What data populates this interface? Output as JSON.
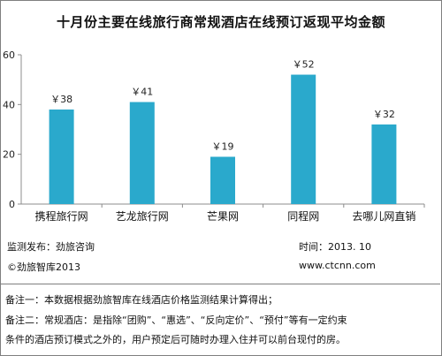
{
  "chart_data": {
    "type": "bar",
    "title": "十月份主要在线旅行商常规酒店在线预订返现平均金额",
    "categories": [
      "携程旅行网",
      "艺龙旅行网",
      "芒果网",
      "同程网",
      "去哪儿网直销"
    ],
    "values": [
      38,
      41,
      19,
      52,
      32
    ],
    "data_labels": [
      "￥38",
      "￥41",
      "￥19",
      "￥52",
      "￥32"
    ],
    "ylim": [
      0,
      60
    ],
    "yticks": [
      0,
      20,
      40,
      60
    ],
    "grid": false,
    "bar_color": "#2aa9cc"
  },
  "info": {
    "publisher": "监测发布：劲旅咨询",
    "time": "时间：2013. 10",
    "copyright": "©劲旅智库2013",
    "website": "www.ctcnn.com"
  },
  "notes": {
    "line1": "备注一：本数据根据劲旅智库在线酒店价格监测结果计算得出；",
    "line2": "备注二：常规酒店：是指除“团购”、“惠选”、“反向定价”、“预付”等有一定约束",
    "line3": "条件的酒店预订模式之外的，用户预定后可随时办理入住并可以前台现付的房。"
  }
}
